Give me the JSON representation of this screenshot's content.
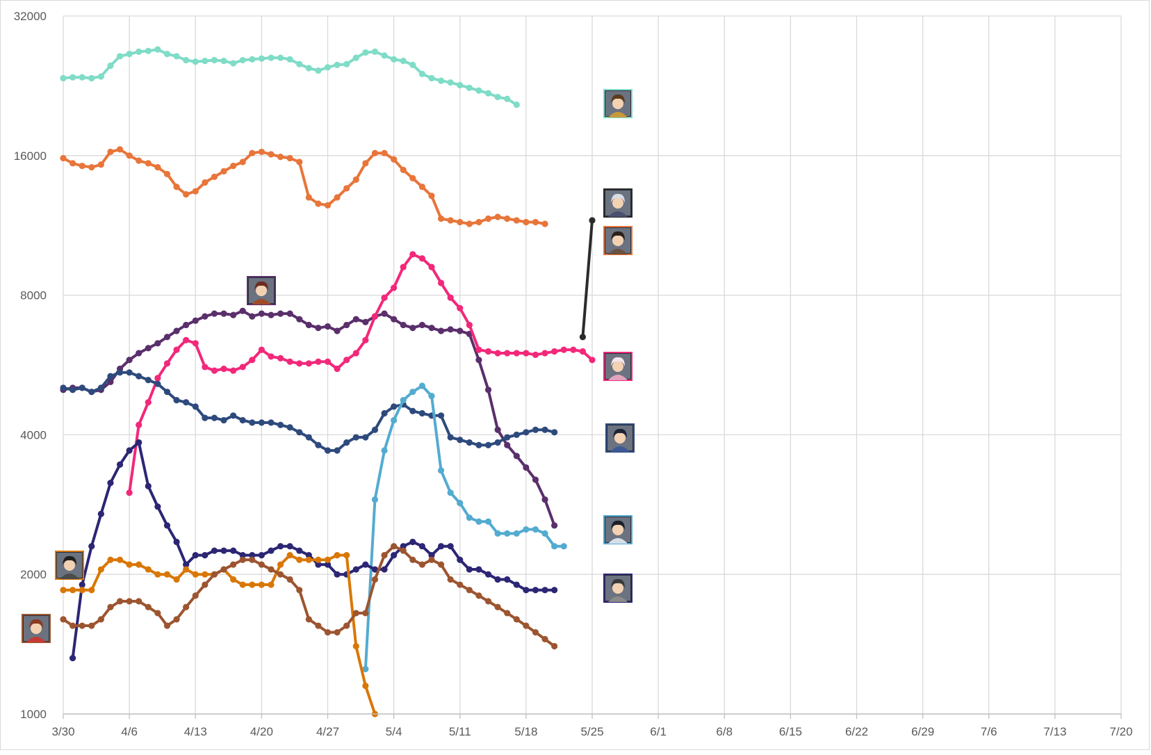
{
  "chart_data": {
    "type": "line",
    "y_scale": "log2",
    "ylim": [
      1000,
      32000
    ],
    "y_ticks": [
      "1000",
      "2000",
      "4000",
      "8000",
      "16000",
      "32000"
    ],
    "x_ticks": [
      "3/30",
      "4/6",
      "4/13",
      "4/20",
      "4/27",
      "5/4",
      "5/11",
      "5/18",
      "5/25",
      "6/1",
      "6/8",
      "6/15",
      "6/22",
      "6/29",
      "7/6",
      "7/13",
      "7/20"
    ],
    "xlim": [
      "3/30",
      "7/20"
    ],
    "grid": true,
    "legend": "avatar icons at line ends",
    "series": [
      {
        "color": "#7fdcc7",
        "icon": "warrior-avatar-icon",
        "start": "3/30",
        "values": [
          23500,
          23600,
          23600,
          23500,
          23700,
          25000,
          26200,
          26500,
          26800,
          26900,
          27100,
          26500,
          26200,
          25700,
          25500,
          25600,
          25700,
          25600,
          25300,
          25700,
          25800,
          25900,
          26000,
          26000,
          25800,
          25200,
          24700,
          24400,
          24800,
          25100,
          25200,
          26000,
          26700,
          26800,
          26300,
          25800,
          25600,
          25100,
          24000,
          23500,
          23200,
          23000,
          22700,
          22400,
          22100,
          21800,
          21400,
          21200,
          20600
        ]
      },
      {
        "color": "#e8753a",
        "icon": "dark-hair-man-avatar-icon",
        "start": "3/30",
        "values": [
          15800,
          15400,
          15200,
          15100,
          15300,
          16300,
          16500,
          16000,
          15600,
          15400,
          15100,
          14600,
          13700,
          13200,
          13400,
          14000,
          14400,
          14800,
          15200,
          15500,
          16200,
          16300,
          16100,
          15900,
          15800,
          15500,
          13000,
          12600,
          12500,
          13000,
          13600,
          14200,
          15400,
          16200,
          16200,
          15700,
          14900,
          14300,
          13700,
          13100,
          11700,
          11600,
          11500,
          11400,
          11500,
          11700,
          11800,
          11700,
          11600,
          11500,
          11500,
          11400
        ]
      },
      {
        "color": "#2b2b2b",
        "icon": "silver-hair-avatar-icon",
        "start": "5/24",
        "values": [
          6500,
          11600
        ]
      },
      {
        "color": "#5a2f6b",
        "icon": "brown-hair-boy-avatar-icon",
        "start": "3/30",
        "values": [
          5000,
          5050,
          5050,
          4950,
          5000,
          5200,
          5550,
          5800,
          6000,
          6150,
          6300,
          6500,
          6700,
          6900,
          7050,
          7200,
          7300,
          7300,
          7250,
          7400,
          7200,
          7300,
          7250,
          7300,
          7300,
          7100,
          6900,
          6800,
          6850,
          6700,
          6900,
          7100,
          7000,
          7200,
          7300,
          7100,
          6900,
          6800,
          6900,
          6800,
          6700,
          6750,
          6700,
          6600,
          5800,
          5000,
          4100,
          3800,
          3600,
          3400,
          3200,
          2900,
          2550
        ]
      },
      {
        "color": "#f2287a",
        "icon": "white-hair-glasses-avatar-icon",
        "start": "4/6",
        "values": [
          3000,
          4200,
          4700,
          5300,
          5700,
          6100,
          6400,
          6300,
          5600,
          5500,
          5550,
          5500,
          5600,
          5800,
          6100,
          5900,
          5850,
          5750,
          5700,
          5700,
          5750,
          5750,
          5550,
          5800,
          6000,
          6400,
          7200,
          7900,
          8300,
          9200,
          9800,
          9600,
          9200,
          8500,
          7900,
          7500,
          6900,
          6100,
          6050,
          6000,
          6000,
          6000,
          6000,
          5950,
          6000,
          6050,
          6100,
          6100,
          6050,
          5800
        ]
      },
      {
        "color": "#2e4a7d",
        "icon": "blue-robe-avatar-icon",
        "start": "3/30",
        "values": [
          5050,
          5000,
          5050,
          4950,
          5050,
          5350,
          5450,
          5450,
          5350,
          5250,
          5150,
          4950,
          4750,
          4700,
          4600,
          4350,
          4350,
          4300,
          4400,
          4300,
          4250,
          4250,
          4250,
          4200,
          4150,
          4050,
          3950,
          3800,
          3700,
          3700,
          3850,
          3950,
          3950,
          4100,
          4450,
          4600,
          4650,
          4500,
          4450,
          4400,
          4400,
          3950,
          3900,
          3850,
          3800,
          3800,
          3850,
          3950,
          4000,
          4050,
          4100,
          4100,
          4050
        ]
      },
      {
        "color": "#54abd0",
        "icon": "dark-hair-girl-avatar-icon",
        "start": "5/1",
        "values": [
          1250,
          2900,
          3700,
          4300,
          4750,
          4950,
          5100,
          4850,
          3350,
          3000,
          2850,
          2650,
          2600,
          2600,
          2450,
          2450,
          2450,
          2500,
          2500,
          2450,
          2300,
          2300
        ]
      },
      {
        "color": "#2c2674",
        "icon": "armored-figure-avatar-icon",
        "start": "3/31",
        "values": [
          1320,
          1900,
          2300,
          2700,
          3150,
          3450,
          3700,
          3850,
          3100,
          2800,
          2550,
          2350,
          2100,
          2200,
          2200,
          2250,
          2250,
          2250,
          2200,
          2200,
          2200,
          2250,
          2300,
          2300,
          2250,
          2200,
          2100,
          2100,
          2000,
          2000,
          2050,
          2100,
          2050,
          2050,
          2200,
          2300,
          2350,
          2300,
          2200,
          2300,
          2300,
          2150,
          2050,
          2050,
          2000,
          1950,
          1950,
          1900,
          1850,
          1850,
          1850,
          1850
        ]
      },
      {
        "color": "#d97706",
        "icon": "ninja-avatar-icon",
        "start": "3/30",
        "values": [
          1850,
          1850,
          1850,
          1850,
          2050,
          2150,
          2150,
          2100,
          2100,
          2050,
          2000,
          2000,
          1950,
          2050,
          2000,
          2000,
          2000,
          2050,
          1950,
          1900,
          1900,
          1900,
          1900,
          2100,
          2200,
          2150,
          2150,
          2150,
          2150,
          2200,
          2200,
          1400,
          1150,
          1000
        ]
      },
      {
        "color": "#9c5530",
        "icon": "red-angry-girl-avatar-icon",
        "start": "3/30",
        "values": [
          1600,
          1550,
          1550,
          1550,
          1600,
          1700,
          1750,
          1750,
          1750,
          1700,
          1650,
          1550,
          1600,
          1700,
          1800,
          1900,
          2000,
          2050,
          2100,
          2150,
          2150,
          2100,
          2050,
          2000,
          1950,
          1850,
          1600,
          1550,
          1500,
          1500,
          1550,
          1650,
          1650,
          1950,
          2200,
          2300,
          2250,
          2150,
          2100,
          2150,
          2100,
          1950,
          1900,
          1850,
          1800,
          1750,
          1700,
          1650,
          1600,
          1550,
          1500,
          1450,
          1400
        ]
      }
    ],
    "extra_icons": [
      {
        "icon": "armor-warrior-avatar-icon",
        "near": "3/30"
      },
      {
        "icon": "red-hair-warrior-avatar-icon",
        "near": "4/20"
      }
    ]
  }
}
